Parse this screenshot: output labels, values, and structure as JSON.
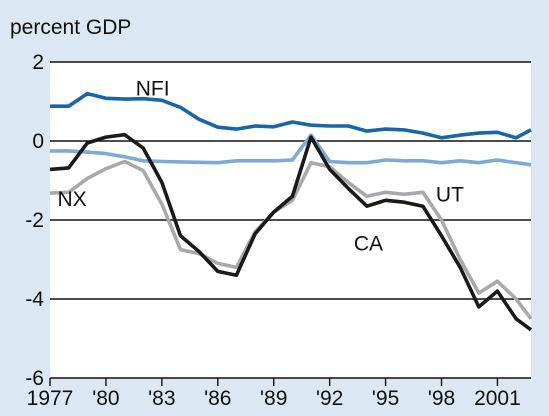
{
  "colors": {
    "background": "#dbe8f3",
    "plot_background": "#ffffff",
    "grid": "#111111",
    "NFI": "#1767a8",
    "UT": "#7eaad3",
    "NX": "#a7a9ac",
    "CA": "#1a1a1a"
  },
  "chart_data": {
    "type": "line",
    "ylabel": "percent GDP",
    "ylim": [
      -6,
      2
    ],
    "xlim": [
      1977,
      2002.8
    ],
    "yticks": [
      {
        "value": 2,
        "label": "2"
      },
      {
        "value": 0,
        "label": "0"
      },
      {
        "value": -2,
        "label": "-2"
      },
      {
        "value": -4,
        "label": "-4"
      },
      {
        "value": -6,
        "label": "-6"
      }
    ],
    "xticks": [
      {
        "value": 1977,
        "label": "1977"
      },
      {
        "value": 1980,
        "label": "'80"
      },
      {
        "value": 1983,
        "label": "'83"
      },
      {
        "value": 1986,
        "label": "'86"
      },
      {
        "value": 1989,
        "label": "'89"
      },
      {
        "value": 1992,
        "label": "'92"
      },
      {
        "value": 1995,
        "label": "'95"
      },
      {
        "value": 1998,
        "label": "'98"
      },
      {
        "value": 2001,
        "label": "2001"
      }
    ],
    "grid": "horizontal",
    "series": [
      {
        "name": "NFI",
        "label_at": [
          1981.6,
          1.33
        ],
        "x": [
          1977,
          1978,
          1979,
          1980,
          1981,
          1982,
          1983,
          1984,
          1985,
          1986,
          1987,
          1988,
          1989,
          1990,
          1991,
          1992,
          1993,
          1994,
          1995,
          1996,
          1997,
          1998,
          1999,
          2000,
          2001,
          2002,
          2002.8
        ],
        "values": [
          0.88,
          0.88,
          1.2,
          1.08,
          1.06,
          1.07,
          1.03,
          0.85,
          0.55,
          0.35,
          0.3,
          0.38,
          0.36,
          0.48,
          0.4,
          0.38,
          0.38,
          0.25,
          0.3,
          0.28,
          0.2,
          0.08,
          0.15,
          0.2,
          0.22,
          0.08,
          0.28
        ]
      },
      {
        "name": "UT",
        "label_at": [
          1997.7,
          -1.35
        ],
        "x": [
          1977,
          1978,
          1979,
          1980,
          1981,
          1982,
          1983,
          1984,
          1985,
          1986,
          1987,
          1988,
          1989,
          1990,
          1991,
          1992,
          1993,
          1994,
          1995,
          1996,
          1997,
          1998,
          1999,
          2000,
          2001,
          2002,
          2002.8
        ],
        "values": [
          -0.25,
          -0.25,
          -0.28,
          -0.32,
          -0.4,
          -0.5,
          -0.52,
          -0.53,
          -0.54,
          -0.55,
          -0.5,
          -0.5,
          -0.5,
          -0.48,
          0.15,
          -0.52,
          -0.55,
          -0.55,
          -0.48,
          -0.5,
          -0.5,
          -0.55,
          -0.5,
          -0.55,
          -0.48,
          -0.55,
          -0.6
        ]
      },
      {
        "name": "NX",
        "label_at": [
          1977.4,
          -1.47
        ],
        "x": [
          1977,
          1978,
          1979,
          1980,
          1981,
          1982,
          1983,
          1984,
          1985,
          1986,
          1987,
          1988,
          1989,
          1990,
          1991,
          1992,
          1993,
          1994,
          1995,
          1996,
          1997,
          1998,
          1999,
          2000,
          2001,
          2002,
          2002.8
        ],
        "values": [
          -1.32,
          -1.3,
          -0.95,
          -0.7,
          -0.52,
          -0.75,
          -1.6,
          -2.75,
          -2.85,
          -3.1,
          -3.2,
          -2.3,
          -1.8,
          -1.5,
          -0.55,
          -0.65,
          -1.05,
          -1.4,
          -1.3,
          -1.35,
          -1.3,
          -2.0,
          -3.0,
          -3.85,
          -3.55,
          -4.0,
          -4.5
        ]
      },
      {
        "name": "CA",
        "label_at": [
          1993.3,
          -2.6
        ],
        "x": [
          1977,
          1978,
          1979,
          1980,
          1981,
          1982,
          1983,
          1984,
          1985,
          1986,
          1987,
          1988,
          1989,
          1990,
          1991,
          1992,
          1993,
          1994,
          1995,
          1996,
          1997,
          1998,
          1999,
          2000,
          2001,
          2002,
          2002.8
        ],
        "values": [
          -0.72,
          -0.68,
          -0.05,
          0.1,
          0.16,
          -0.18,
          -1.05,
          -2.4,
          -2.8,
          -3.3,
          -3.4,
          -2.35,
          -1.8,
          -1.4,
          0.1,
          -0.72,
          -1.2,
          -1.65,
          -1.5,
          -1.55,
          -1.65,
          -2.4,
          -3.2,
          -4.2,
          -3.8,
          -4.5,
          -4.78
        ]
      }
    ]
  }
}
